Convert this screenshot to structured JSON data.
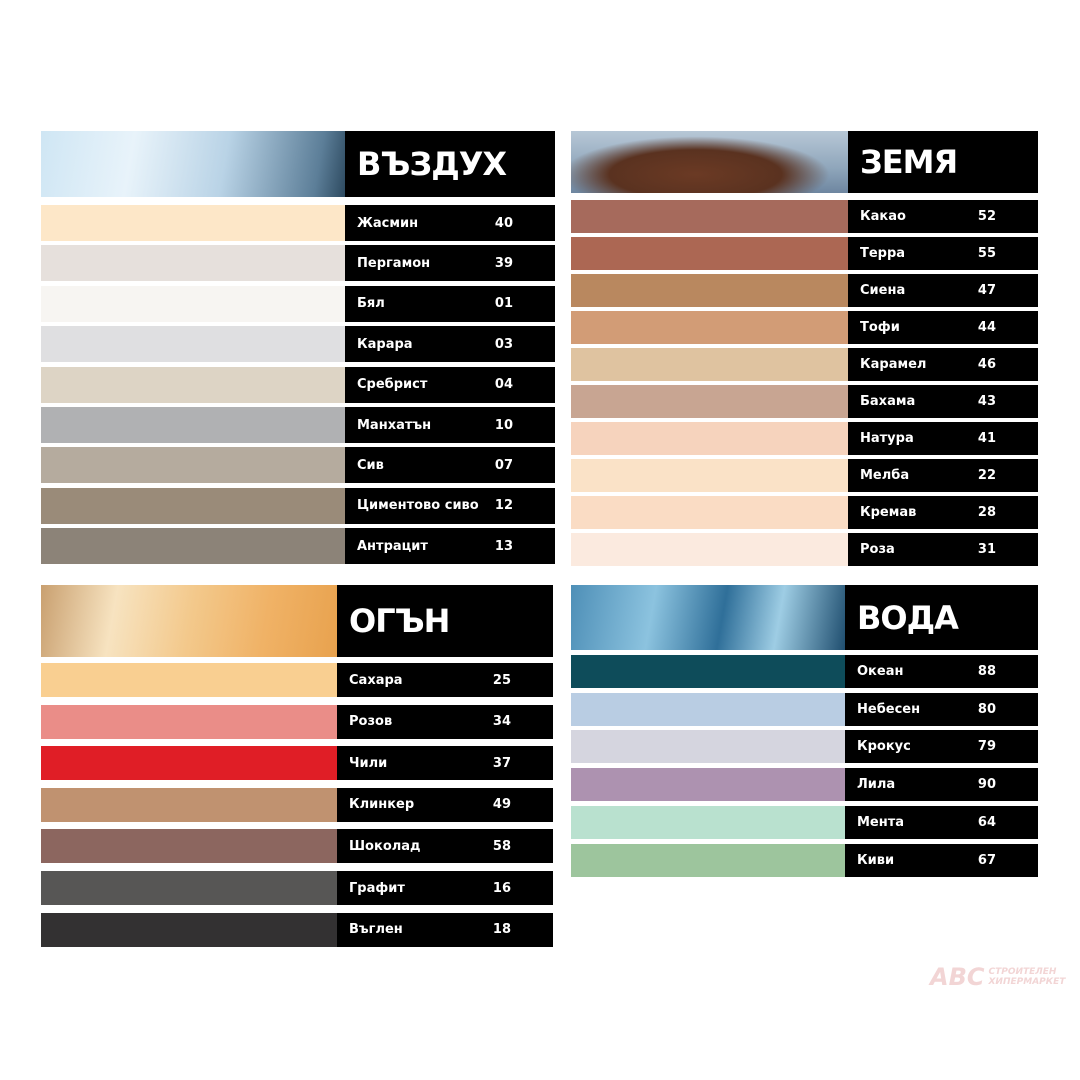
{
  "groups": [
    {
      "title": "ВЪЗДУХ",
      "image": "sky-clouds",
      "items": [
        {
          "name": "Жасмин",
          "code": "40",
          "color": "#fde7c8"
        },
        {
          "name": "Пергамон",
          "code": "39",
          "color": "#e6e0dc"
        },
        {
          "name": "Бял",
          "code": "01",
          "color": "#f7f5f2"
        },
        {
          "name": "Карара",
          "code": "03",
          "color": "#dfdfe1"
        },
        {
          "name": "Сребрист",
          "code": "04",
          "color": "#ddd4c5"
        },
        {
          "name": "Манхатън",
          "code": "10",
          "color": "#b0b1b3"
        },
        {
          "name": "Сив",
          "code": "07",
          "color": "#b5ab9e"
        },
        {
          "name": "Циментово сиво",
          "code": "12",
          "color": "#9a8b79"
        },
        {
          "name": "Антрацит",
          "code": "13",
          "color": "#8c8378"
        }
      ]
    },
    {
      "title": "ЗЕМЯ",
      "image": "brown-rock",
      "items": [
        {
          "name": "Какао",
          "code": "52",
          "color": "#a66a5c"
        },
        {
          "name": "Терра",
          "code": "55",
          "color": "#ac6753"
        },
        {
          "name": "Сиена",
          "code": "47",
          "color": "#b9885f"
        },
        {
          "name": "Тофи",
          "code": "44",
          "color": "#d29c76"
        },
        {
          "name": "Карамел",
          "code": "46",
          "color": "#dfc3a0"
        },
        {
          "name": "Бахама",
          "code": "43",
          "color": "#c8a592"
        },
        {
          "name": "Натура",
          "code": "41",
          "color": "#f6d3bd"
        },
        {
          "name": "Мелба",
          "code": "22",
          "color": "#fae2c7"
        },
        {
          "name": "Кремав",
          "code": "28",
          "color": "#fadcc4"
        },
        {
          "name": "Роза",
          "code": "31",
          "color": "#fbeadf"
        }
      ]
    },
    {
      "title": "ОГЪН",
      "image": "fire-glow",
      "items": [
        {
          "name": "Сахара",
          "code": "25",
          "color": "#f9cf91"
        },
        {
          "name": "Розов",
          "code": "34",
          "color": "#ea8d88"
        },
        {
          "name": "Чили",
          "code": "37",
          "color": "#e01e26"
        },
        {
          "name": "Клинкер",
          "code": "49",
          "color": "#c09270"
        },
        {
          "name": "Шоколад",
          "code": "58",
          "color": "#8c665f"
        },
        {
          "name": "Графит",
          "code": "16",
          "color": "#575655"
        },
        {
          "name": "Въглен",
          "code": "18",
          "color": "#333132"
        }
      ]
    },
    {
      "title": "ВОДА",
      "image": "waterfall",
      "items": [
        {
          "name": "Океан",
          "code": "88",
          "color": "#0e4c5a"
        },
        {
          "name": "Небесен",
          "code": "80",
          "color": "#b9cde3"
        },
        {
          "name": "Крокус",
          "code": "79",
          "color": "#d5d5df"
        },
        {
          "name": "Лила",
          "code": "90",
          "color": "#ad92b0"
        },
        {
          "name": "Мента",
          "code": "64",
          "color": "#b9e1cf"
        },
        {
          "name": "Киви",
          "code": "67",
          "color": "#9dc59d"
        }
      ]
    }
  ],
  "watermark": {
    "brand": "ABC",
    "line1": "СТРОИТЕЛЕН",
    "line2": "ХИПЕРМАРКЕТ"
  }
}
